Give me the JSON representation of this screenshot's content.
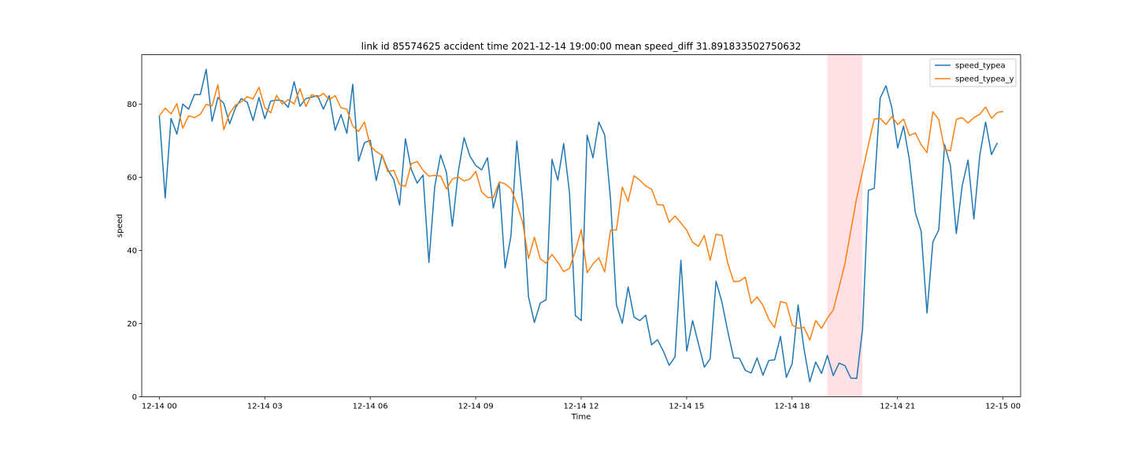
{
  "chart_data": {
    "type": "line",
    "title": "link id 85574625 accident time 2021-12-14 19:00:00 mean speed_diff 31.891833502750632",
    "xlabel": "Time",
    "ylabel": "speed",
    "xlim": [
      -0.5,
      24.5
    ],
    "ylim": [
      0,
      93.5
    ],
    "x_ticks": [
      0,
      3,
      6,
      9,
      12,
      15,
      18,
      21,
      24
    ],
    "x_tick_labels": [
      "12-14 00",
      "12-14 03",
      "12-14 06",
      "12-14 09",
      "12-14 12",
      "12-14 15",
      "12-14 18",
      "12-14 21",
      "12-15 00"
    ],
    "y_ticks": [
      0,
      20,
      40,
      60,
      80
    ],
    "y_tick_labels": [
      "0",
      "20",
      "40",
      "60",
      "80"
    ],
    "x_step_hours": 0.1667,
    "highlight_span": {
      "x_start": 19.0,
      "x_end": 20.0,
      "color": "#ffe0e4"
    },
    "legend_position": "top-right",
    "series": [
      {
        "name": "speed_typea",
        "color": "#1f77b4",
        "values": [
          76.8,
          54.3,
          76.1,
          71.8,
          80.0,
          78.6,
          82.6,
          82.6,
          89.5,
          75.3,
          81.8,
          80.2,
          74.6,
          79.0,
          81.5,
          80.5,
          75.5,
          81.8,
          76.0,
          80.8,
          81.1,
          80.9,
          79.1,
          86.1,
          79.4,
          81.5,
          81.9,
          82.3,
          78.6,
          82.3,
          72.8,
          77.1,
          72.0,
          85.4,
          64.4,
          69.4,
          70.1,
          59.1,
          66.1,
          62.0,
          59.4,
          52.4,
          70.5,
          62.1,
          58.4,
          60.6,
          36.7,
          57.5,
          66.1,
          61.3,
          46.6,
          61.4,
          70.8,
          65.8,
          63.2,
          62.0,
          65.3,
          51.6,
          58.4,
          35.2,
          43.9,
          69.9,
          53.4,
          27.3,
          20.3,
          25.6,
          26.5,
          64.9,
          59.2,
          69.2,
          55.7,
          22.2,
          20.8,
          71.5,
          65.3,
          75.1,
          71.5,
          53.9,
          25.1,
          20.1,
          30.0,
          21.8,
          20.8,
          22.3,
          14.2,
          15.6,
          12.5,
          8.6,
          10.9,
          37.3,
          12.5,
          20.8,
          14.5,
          8.1,
          10.4,
          31.6,
          25.9,
          17.9,
          10.6,
          10.5,
          7.2,
          6.5,
          10.6,
          5.9,
          9.9,
          10.1,
          16.5,
          5.3,
          9.1,
          25.1,
          13.2,
          4.1,
          9.5,
          6.4,
          11.3,
          5.8,
          9.2,
          8.5,
          5.1,
          5.0,
          18.5,
          56.4,
          57.0,
          81.6,
          85.0,
          79.0,
          68.0,
          74.0,
          64.7,
          50.4,
          45.2,
          22.9,
          42.3,
          45.6,
          68.9,
          63.1,
          44.6,
          57.6,
          64.7,
          48.6,
          65.9,
          75.1,
          66.2,
          69.4
        ]
      },
      {
        "name": "speed_typea_y",
        "color": "#ff7f0e",
        "values": [
          76.8,
          78.9,
          77.3,
          80.1,
          73.4,
          76.8,
          76.3,
          77.2,
          79.9,
          79.5,
          85.3,
          73.0,
          77.5,
          79.7,
          80.6,
          82.0,
          81.4,
          84.6,
          79.0,
          77.6,
          82.4,
          80.0,
          81.2,
          80.0,
          84.2,
          79.3,
          82.6,
          81.9,
          82.9,
          81.2,
          82.3,
          79.0,
          78.6,
          74.0,
          72.5,
          75.1,
          68.6,
          67.0,
          66.0,
          61.5,
          61.9,
          58.0,
          57.5,
          63.7,
          64.3,
          61.9,
          60.3,
          60.5,
          60.3,
          56.8,
          59.5,
          60.1,
          59.0,
          59.5,
          61.6,
          56.0,
          54.5,
          54.4,
          58.7,
          58.2,
          56.9,
          52.8,
          47.6,
          37.8,
          43.6,
          37.7,
          36.5,
          38.9,
          36.8,
          34.2,
          35.1,
          39.9,
          45.7,
          33.9,
          36.3,
          38.0,
          34.1,
          45.6,
          45.6,
          57.3,
          53.4,
          60.4,
          59.2,
          57.6,
          56.7,
          52.5,
          52.4,
          47.7,
          49.4,
          47.5,
          45.5,
          42.2,
          41.1,
          44.1,
          37.3,
          44.4,
          44.1,
          36.5,
          31.5,
          31.6,
          32.7,
          25.5,
          27.3,
          25.0,
          21.2,
          18.9,
          26.0,
          25.6,
          19.6,
          18.7,
          19.0,
          15.5,
          20.8,
          18.7,
          21.5,
          23.7,
          30.0,
          36.4,
          45.5,
          54.3,
          61.6,
          68.9,
          75.9,
          76.1,
          74.4,
          76.6,
          74.4,
          75.9,
          71.4,
          72.1,
          68.9,
          66.7,
          77.9,
          75.8,
          67.6,
          67.2,
          75.8,
          76.3,
          74.8,
          76.3,
          77.2,
          79.2,
          76.1,
          77.7,
          78.0
        ]
      }
    ]
  }
}
